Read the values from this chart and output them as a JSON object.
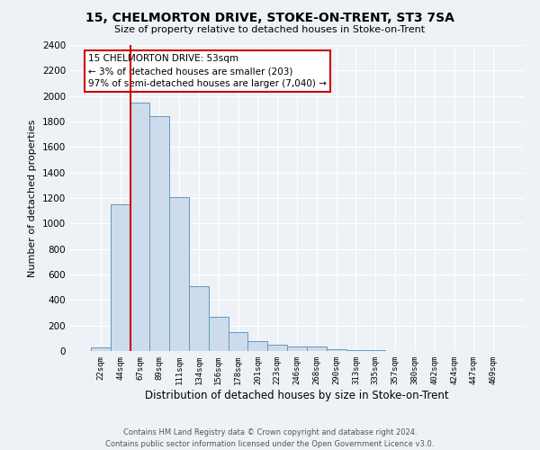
{
  "title": "15, CHELMORTON DRIVE, STOKE-ON-TRENT, ST3 7SA",
  "subtitle": "Size of property relative to detached houses in Stoke-on-Trent",
  "xlabel": "Distribution of detached houses by size in Stoke-on-Trent",
  "ylabel": "Number of detached properties",
  "bin_labels": [
    "22sqm",
    "44sqm",
    "67sqm",
    "89sqm",
    "111sqm",
    "134sqm",
    "156sqm",
    "178sqm",
    "201sqm",
    "223sqm",
    "246sqm",
    "268sqm",
    "290sqm",
    "313sqm",
    "335sqm",
    "357sqm",
    "380sqm",
    "402sqm",
    "424sqm",
    "447sqm",
    "469sqm"
  ],
  "bar_values": [
    30,
    1150,
    1950,
    1840,
    1210,
    510,
    265,
    150,
    80,
    50,
    35,
    35,
    15,
    10,
    5,
    3,
    2,
    1,
    1,
    1,
    1
  ],
  "bar_color": "#cddcec",
  "bar_edgecolor": "#6699bb",
  "vline_color": "#cc0000",
  "annotation_text": "15 CHELMORTON DRIVE: 53sqm\n← 3% of detached houses are smaller (203)\n97% of semi-detached houses are larger (7,040) →",
  "annotation_box_edgecolor": "#cc0000",
  "ylim": [
    0,
    2400
  ],
  "yticks": [
    0,
    200,
    400,
    600,
    800,
    1000,
    1200,
    1400,
    1600,
    1800,
    2000,
    2200,
    2400
  ],
  "footer_line1": "Contains HM Land Registry data © Crown copyright and database right 2024.",
  "footer_line2": "Contains public sector information licensed under the Open Government Licence v3.0.",
  "bg_color": "#eef2f7",
  "plot_bg_color": "#eef2f7"
}
